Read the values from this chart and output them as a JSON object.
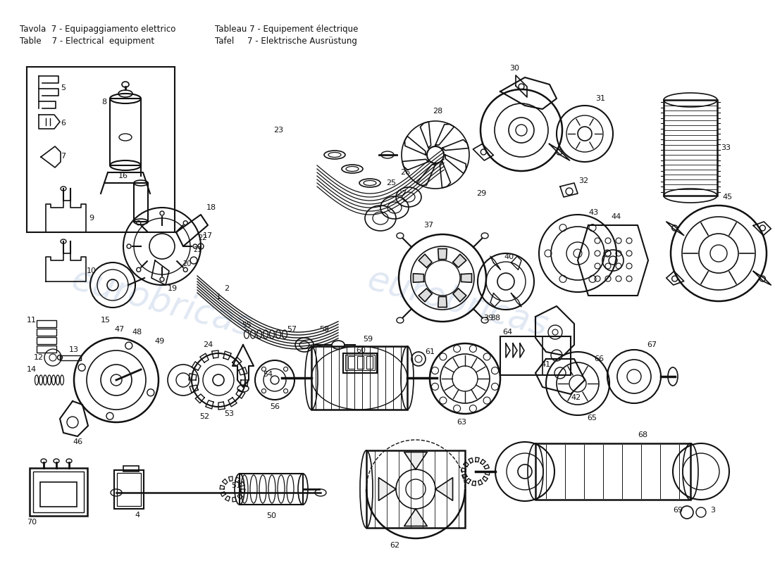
{
  "background_color": "#ffffff",
  "header_text_left1": "Tavola  7 - Equipaggiamento elettrico",
  "header_text_left2": "Table    7 - Electrical  equipment",
  "header_text_right1": "Tableau 7 - Equipement électrique",
  "header_text_right2": "Tafel     7 - Elektrische Ausrüstung",
  "watermark_color": "#cddaeb",
  "line_color": "#111111",
  "fig_width": 11.0,
  "fig_height": 8.0,
  "dpi": 100
}
